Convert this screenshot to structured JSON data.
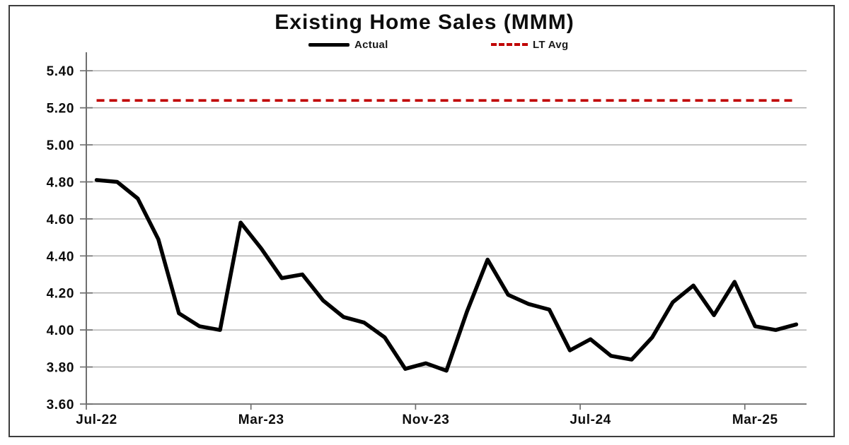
{
  "colors": {
    "background": "#FFFFFF",
    "border": "#3D3D3D",
    "grid": "#ABABAB",
    "axis": "#6F6F6F",
    "text": "#0D0D0D"
  },
  "chart_data": {
    "type": "line",
    "title": "Existing Home Sales (MMM)",
    "x_categories": [
      "Jul-22",
      "Aug-22",
      "Sep-22",
      "Oct-22",
      "Nov-22",
      "Dec-22",
      "Jan-23",
      "Feb-23",
      "Mar-23",
      "Apr-23",
      "May-23",
      "Jun-23",
      "Jul-23",
      "Aug-23",
      "Sep-23",
      "Oct-23",
      "Nov-23",
      "Dec-23",
      "Jan-24",
      "Feb-24",
      "Mar-24",
      "Apr-24",
      "May-24",
      "Jun-24",
      "Jul-24",
      "Aug-24",
      "Sep-24",
      "Oct-24",
      "Nov-24",
      "Dec-24",
      "Jan-25",
      "Feb-25",
      "Mar-25",
      "Apr-25",
      "May-25"
    ],
    "x_tick_labels": [
      "Jul-22",
      "Mar-23",
      "Nov-23",
      "Jul-24",
      "Mar-25"
    ],
    "x_tick_indices": [
      0,
      8,
      16,
      24,
      32
    ],
    "y_ticks": [
      "3.60",
      "3.80",
      "4.00",
      "4.20",
      "4.40",
      "4.60",
      "4.80",
      "5.00",
      "5.20",
      "5.40"
    ],
    "ylim": [
      3.6,
      5.5
    ],
    "grid": "horizontal",
    "legend_position": "top",
    "series": [
      {
        "name": "Actual",
        "style": "solid",
        "color": "#000000",
        "values": [
          4.81,
          4.8,
          4.71,
          4.49,
          4.09,
          4.02,
          4.0,
          4.58,
          4.44,
          4.28,
          4.3,
          4.16,
          4.07,
          4.04,
          3.96,
          3.79,
          3.82,
          3.78,
          4.1,
          4.38,
          4.19,
          4.14,
          4.11,
          3.89,
          3.95,
          3.86,
          3.84,
          3.96,
          4.15,
          4.24,
          4.08,
          4.26,
          4.02,
          4.0,
          4.03
        ]
      },
      {
        "name": "LT Avg",
        "style": "dashed",
        "color": "#C00000",
        "value": 5.24
      }
    ]
  }
}
